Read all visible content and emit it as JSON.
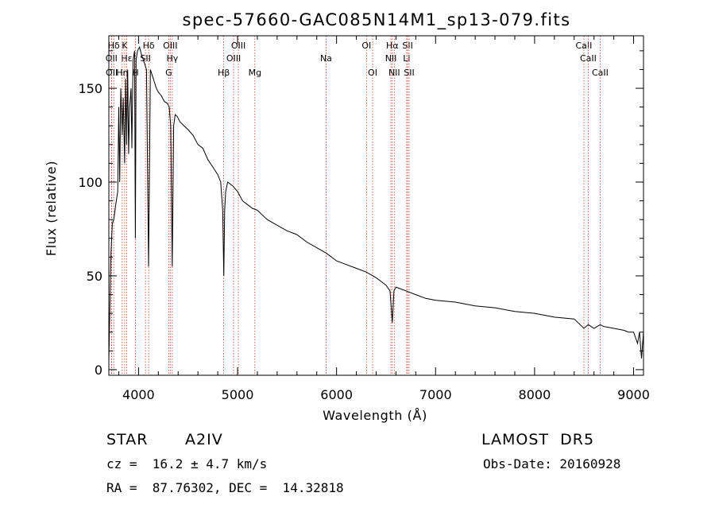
{
  "chart_data": {
    "type": "line",
    "title": "spec-57660-GAC085N14M1_sp13-079.fits",
    "xlabel": "Wavelength (Å)",
    "ylabel": "Flux (relative)",
    "xlim": [
      3700,
      9100
    ],
    "ylim": [
      -3,
      178
    ],
    "xticks": [
      4000,
      5000,
      6000,
      7000,
      8000,
      9000
    ],
    "yticks": [
      0,
      50,
      100,
      150
    ],
    "grid": false,
    "series": [
      {
        "x": [
          3700,
          3710,
          3720,
          3735,
          3750,
          3770,
          3790,
          3800,
          3810,
          3820,
          3835,
          3845,
          3860,
          3870,
          3880,
          3890,
          3900,
          3910,
          3925,
          3933,
          3945,
          3960,
          3968,
          3975,
          3990,
          4010,
          4030,
          4050,
          4080,
          4101,
          4120,
          4150,
          4180,
          4200,
          4230,
          4260,
          4290,
          4310,
          4325,
          4340,
          4355,
          4370,
          4390,
          4420,
          4460,
          4500,
          4550,
          4600,
          4650,
          4700,
          4750,
          4800,
          4830,
          4850,
          4861,
          4870,
          4880,
          4900,
          4950,
          5000,
          5050,
          5100,
          5150,
          5200,
          5300,
          5400,
          5500,
          5600,
          5700,
          5800,
          5900,
          6000,
          6100,
          6200,
          6300,
          6400,
          6450,
          6500,
          6540,
          6563,
          6580,
          6600,
          6700,
          6800,
          6900,
          7000,
          7200,
          7400,
          7600,
          7800,
          8000,
          8200,
          8400,
          8498,
          8542,
          8600,
          8662,
          8700,
          8800,
          8900,
          8950,
          9000,
          9040,
          9060,
          9080,
          9100
        ],
        "y": [
          5,
          30,
          60,
          78,
          80,
          88,
          95,
          140,
          100,
          150,
          125,
          145,
          110,
          155,
          120,
          160,
          115,
          140,
          150,
          118,
          165,
          170,
          70,
          165,
          170,
          172,
          168,
          165,
          160,
          55,
          160,
          155,
          150,
          148,
          146,
          143,
          142,
          140,
          130,
          55,
          130,
          136,
          135,
          132,
          130,
          128,
          125,
          120,
          118,
          112,
          108,
          104,
          100,
          85,
          50,
          85,
          95,
          100,
          98,
          95,
          90,
          88,
          86,
          85,
          80,
          77,
          74,
          72,
          68,
          65,
          62,
          58,
          56,
          54,
          52,
          49,
          47,
          45,
          42,
          25,
          42,
          44,
          42,
          40,
          38,
          37,
          36,
          34,
          33,
          31,
          30,
          28,
          27,
          22,
          24,
          22,
          24,
          23,
          22,
          21,
          20,
          20,
          14,
          20,
          6,
          20
        ]
      }
    ],
    "emission_lines": [
      {
        "label": "Hδ",
        "wavelength": 3750,
        "row": 1
      },
      {
        "label": "K",
        "wavelength": 3860,
        "row": 1
      },
      {
        "label": "Hδ",
        "wavelength": 4102,
        "row": 1
      },
      {
        "label": "OIII",
        "wavelength": 4320,
        "row": 1
      },
      {
        "label": "OIII",
        "wavelength": 5008,
        "row": 1
      },
      {
        "label": "OI",
        "wavelength": 6302,
        "row": 1
      },
      {
        "label": "Hα",
        "wavelength": 6563,
        "row": 1
      },
      {
        "label": "SII",
        "wavelength": 6718,
        "row": 1
      },
      {
        "label": "CaII",
        "wavelength": 8498,
        "row": 1
      },
      {
        "label": "OII",
        "wavelength": 3727,
        "row": 2
      },
      {
        "label": "Hε",
        "wavelength": 3880,
        "row": 2
      },
      {
        "label": "SII",
        "wavelength": 4070,
        "row": 2
      },
      {
        "label": "Hγ",
        "wavelength": 4341,
        "row": 2
      },
      {
        "label": "OIII",
        "wavelength": 4960,
        "row": 2
      },
      {
        "label": "Na",
        "wavelength": 5894,
        "row": 2
      },
      {
        "label": "NII",
        "wavelength": 6549,
        "row": 2
      },
      {
        "label": "Li",
        "wavelength": 6708,
        "row": 2
      },
      {
        "label": "CaII",
        "wavelength": 8542,
        "row": 2
      },
      {
        "label": "OII",
        "wavelength": 3729,
        "row": 3
      },
      {
        "label": "Hη",
        "wavelength": 3835,
        "row": 3
      },
      {
        "label": "H",
        "wavelength": 3969,
        "row": 3
      },
      {
        "label": "G",
        "wavelength": 4305,
        "row": 3
      },
      {
        "label": "Hβ",
        "wavelength": 4861,
        "row": 3
      },
      {
        "label": "Mg",
        "wavelength": 5175,
        "row": 3
      },
      {
        "label": "OI",
        "wavelength": 6364,
        "row": 3
      },
      {
        "label": "NII",
        "wavelength": 6583,
        "row": 3
      },
      {
        "label": "SII",
        "wavelength": 6733,
        "row": 3
      },
      {
        "label": "CaII",
        "wavelength": 8662,
        "row": 3
      }
    ]
  },
  "info": {
    "object_class": "STAR",
    "subclass": "A2IV",
    "survey": "LAMOST  DR5",
    "velocity": "cz =  16.2 ± 4.7 km/s",
    "obs_date": "Obs-Date: 20160928",
    "coordinates": "RA =  87.76302, DEC =  14.32818"
  }
}
